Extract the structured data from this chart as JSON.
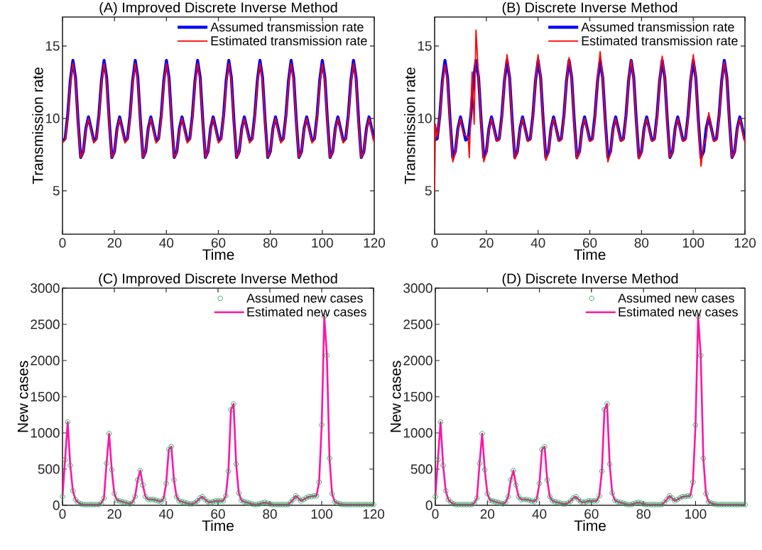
{
  "chart_data": [
    {
      "type": "line",
      "title": "(A) Improved Discrete Inverse Method",
      "xlabel": "Time",
      "ylabel": "Transmission rate",
      "xlim": [
        0,
        120
      ],
      "ylim": [
        2,
        17
      ],
      "xticks": [
        0,
        20,
        40,
        60,
        80,
        100,
        120
      ],
      "yticks": [
        5,
        10,
        15
      ],
      "legend": "top right",
      "x": [
        0,
        1,
        2,
        3,
        4,
        5,
        6,
        7,
        8,
        9,
        10,
        11,
        12,
        13,
        14,
        15,
        16,
        17,
        18,
        19,
        20,
        21,
        22,
        23,
        24,
        25,
        26,
        27,
        28,
        29,
        30,
        31,
        32,
        33,
        34,
        35,
        36,
        37,
        38,
        39,
        40,
        41,
        42,
        43,
        44,
        45,
        46,
        47,
        48,
        49,
        50,
        51,
        52,
        53,
        54,
        55,
        56,
        57,
        58,
        59,
        60,
        61,
        62,
        63,
        64,
        65,
        66,
        67,
        68,
        69,
        70,
        71,
        72,
        73,
        74,
        75,
        76,
        77,
        78,
        79,
        80,
        81,
        82,
        83,
        84,
        85,
        86,
        87,
        88,
        89,
        90,
        91,
        92,
        93,
        94,
        95,
        96,
        97,
        98,
        99,
        100,
        101,
        102,
        103,
        104,
        105,
        106,
        107,
        108,
        109,
        110,
        111,
        112,
        113,
        114,
        115,
        116,
        117,
        118,
        119,
        120
      ],
      "series": [
        {
          "name": "Assumed transmission rate",
          "color": "#0000ff",
          "type": "line",
          "values": [
            8.5,
            8.6,
            10.2,
            12.6,
            14.0,
            12.8,
            9.8,
            7.3,
            7.7,
            9.3,
            10.1,
            9.3,
            8.5,
            8.6,
            10.2,
            12.6,
            14.0,
            12.8,
            9.8,
            7.3,
            7.7,
            9.3,
            10.1,
            9.3,
            8.5,
            8.6,
            10.2,
            12.6,
            14.0,
            12.8,
            9.8,
            7.3,
            7.7,
            9.3,
            10.1,
            9.3,
            8.5,
            8.6,
            10.2,
            12.6,
            14.0,
            12.8,
            9.8,
            7.3,
            7.7,
            9.3,
            10.1,
            9.3,
            8.5,
            8.6,
            10.2,
            12.6,
            14.0,
            12.8,
            9.8,
            7.3,
            7.7,
            9.3,
            10.1,
            9.3,
            8.5,
            8.6,
            10.2,
            12.6,
            14.0,
            12.8,
            9.8,
            7.3,
            7.7,
            9.3,
            10.1,
            9.3,
            8.5,
            8.6,
            10.2,
            12.6,
            14.0,
            12.8,
            9.8,
            7.3,
            7.7,
            9.3,
            10.1,
            9.3,
            8.5,
            8.6,
            10.2,
            12.6,
            14.0,
            12.8,
            9.8,
            7.3,
            7.7,
            9.3,
            10.1,
            9.3,
            8.5,
            8.6,
            10.2,
            12.6,
            14.0,
            12.8,
            9.8,
            7.3,
            7.7,
            9.3,
            10.1,
            9.3,
            8.5,
            8.6,
            10.2,
            12.6,
            14.0,
            12.8,
            9.8,
            7.3,
            7.7,
            9.3,
            10.1,
            9.3,
            8.5
          ]
        },
        {
          "name": "Estimated transmission rate",
          "color": "#ff0000",
          "type": "line",
          "values": [
            8.3,
            8.5,
            10.0,
            12.4,
            13.8,
            12.6,
            9.6,
            7.3,
            7.7,
            9.2,
            10.0,
            9.2,
            8.3,
            8.5,
            10.0,
            12.4,
            13.8,
            12.6,
            9.6,
            7.3,
            7.7,
            9.2,
            10.0,
            9.2,
            8.3,
            8.5,
            10.0,
            12.4,
            13.8,
            12.6,
            9.6,
            7.3,
            7.7,
            9.2,
            10.0,
            9.2,
            8.3,
            8.5,
            10.0,
            12.4,
            13.8,
            12.6,
            9.6,
            7.3,
            7.7,
            9.2,
            10.0,
            9.2,
            8.3,
            8.5,
            10.0,
            12.4,
            13.8,
            12.6,
            9.6,
            7.3,
            7.7,
            9.2,
            10.0,
            9.2,
            8.3,
            8.5,
            10.0,
            12.4,
            13.8,
            12.6,
            9.6,
            7.3,
            7.7,
            9.2,
            10.0,
            9.2,
            8.3,
            8.5,
            10.0,
            12.4,
            13.8,
            12.6,
            9.6,
            7.3,
            7.7,
            9.2,
            10.0,
            9.2,
            8.3,
            8.5,
            10.0,
            12.4,
            13.8,
            12.6,
            9.6,
            7.3,
            7.7,
            9.2,
            10.0,
            9.2,
            8.3,
            8.5,
            10.0,
            12.4,
            13.8,
            12.6,
            9.6,
            7.3,
            7.7,
            9.2,
            10.0,
            9.2,
            8.3,
            8.5,
            10.0,
            12.4,
            13.8,
            12.6,
            9.6,
            7.3,
            7.7,
            9.2,
            10.0,
            9.2,
            8.3
          ]
        }
      ]
    },
    {
      "type": "line",
      "title": "(B) Discrete Inverse Method",
      "xlabel": "Time",
      "ylabel": "Transmission rate",
      "xlim": [
        0,
        120
      ],
      "ylim": [
        2,
        17
      ],
      "xticks": [
        0,
        20,
        40,
        60,
        80,
        100,
        120
      ],
      "yticks": [
        5,
        10,
        15
      ],
      "legend": "top right",
      "x": [
        0,
        1,
        2,
        3,
        4,
        5,
        6,
        7,
        8,
        9,
        10,
        11,
        12,
        13,
        14,
        15,
        16,
        17,
        18,
        19,
        20,
        21,
        22,
        23,
        24,
        25,
        26,
        27,
        28,
        29,
        30,
        31,
        32,
        33,
        34,
        35,
        36,
        37,
        38,
        39,
        40,
        41,
        42,
        43,
        44,
        45,
        46,
        47,
        48,
        49,
        50,
        51,
        52,
        53,
        54,
        55,
        56,
        57,
        58,
        59,
        60,
        61,
        62,
        63,
        64,
        65,
        66,
        67,
        68,
        69,
        70,
        71,
        72,
        73,
        74,
        75,
        76,
        77,
        78,
        79,
        80,
        81,
        82,
        83,
        84,
        85,
        86,
        87,
        88,
        89,
        90,
        91,
        92,
        93,
        94,
        95,
        96,
        97,
        98,
        99,
        100,
        101,
        102,
        103,
        104,
        105,
        106,
        107,
        108,
        109,
        110,
        111,
        112,
        113,
        114,
        115,
        116,
        117,
        118,
        119,
        120
      ],
      "series": [
        {
          "name": "Assumed transmission rate",
          "color": "#0000ff",
          "type": "line",
          "values": [
            8.5,
            8.6,
            10.2,
            12.6,
            14.0,
            12.8,
            9.8,
            7.3,
            7.7,
            9.3,
            10.1,
            9.3,
            8.5,
            8.6,
            10.2,
            12.6,
            14.0,
            12.8,
            9.8,
            7.3,
            7.7,
            9.3,
            10.1,
            9.3,
            8.5,
            8.6,
            10.2,
            12.6,
            14.0,
            12.8,
            9.8,
            7.3,
            7.7,
            9.3,
            10.1,
            9.3,
            8.5,
            8.6,
            10.2,
            12.6,
            14.0,
            12.8,
            9.8,
            7.3,
            7.7,
            9.3,
            10.1,
            9.3,
            8.5,
            8.6,
            10.2,
            12.6,
            14.0,
            12.8,
            9.8,
            7.3,
            7.7,
            9.3,
            10.1,
            9.3,
            8.5,
            8.6,
            10.2,
            12.6,
            14.0,
            12.8,
            9.8,
            7.3,
            7.7,
            9.3,
            10.1,
            9.3,
            8.5,
            8.6,
            10.2,
            12.6,
            14.0,
            12.8,
            9.8,
            7.3,
            7.7,
            9.3,
            10.1,
            9.3,
            8.5,
            8.6,
            10.2,
            12.6,
            14.0,
            12.8,
            9.8,
            7.3,
            7.7,
            9.3,
            10.1,
            9.3,
            8.5,
            8.6,
            10.2,
            12.6,
            14.0,
            12.8,
            9.8,
            7.3,
            7.7,
            9.3,
            10.1,
            9.3,
            8.5,
            8.6,
            10.2,
            12.6,
            14.0,
            12.8,
            9.8,
            7.3,
            7.7,
            9.3,
            10.1,
            9.3,
            8.5
          ]
        },
        {
          "name": "Estimated transmission rate",
          "color": "#ff0000",
          "type": "line",
          "x": [
            0,
            0.3,
            1,
            2,
            3,
            4,
            5,
            6,
            7,
            8,
            9,
            10,
            11,
            12,
            13,
            13.4,
            14.5,
            15.3,
            16,
            17,
            18,
            19,
            20,
            21,
            22,
            23,
            24,
            25,
            26,
            27,
            28,
            29,
            30,
            31,
            32,
            33,
            34,
            35,
            36,
            37,
            38,
            39,
            40,
            41,
            42,
            43,
            44,
            45,
            46,
            47,
            48,
            49,
            50,
            51,
            52,
            53,
            54,
            55,
            56,
            57,
            58,
            59,
            60,
            61,
            62,
            63,
            64,
            65,
            66,
            67,
            68,
            69,
            70,
            71,
            72,
            73,
            74,
            75,
            76,
            77,
            78,
            79,
            80,
            81,
            82,
            83,
            84,
            85,
            86,
            87,
            88,
            89,
            90,
            91,
            92,
            93,
            94,
            95,
            96,
            97,
            98,
            99,
            100,
            101,
            102,
            103,
            104,
            105,
            106,
            107,
            108,
            109,
            110,
            111,
            112,
            113,
            114,
            115,
            116,
            117,
            118,
            119,
            120
          ],
          "values": [
            5.0,
            9.6,
            8.7,
            10.1,
            12.4,
            13.7,
            12.6,
            9.5,
            7.0,
            7.6,
            9.2,
            10.0,
            9.0,
            8.8,
            8.7,
            7.3,
            13.2,
            9.6,
            16.1,
            12.8,
            9.6,
            7.0,
            7.6,
            9.2,
            10.0,
            9.2,
            8.4,
            8.5,
            10.0,
            12.6,
            14.4,
            12.8,
            9.6,
            7.2,
            7.6,
            9.2,
            10.0,
            9.2,
            8.4,
            8.5,
            10.0,
            12.6,
            14.4,
            12.8,
            9.6,
            7.1,
            7.6,
            9.2,
            10.0,
            9.2,
            8.4,
            8.5,
            10.0,
            12.5,
            14.2,
            12.7,
            9.6,
            7.2,
            7.6,
            9.2,
            10.0,
            9.2,
            8.4,
            8.5,
            10.0,
            12.7,
            14.6,
            12.8,
            9.6,
            7.0,
            7.6,
            9.2,
            10.0,
            9.2,
            8.4,
            8.5,
            10.0,
            12.5,
            14.0,
            12.7,
            9.6,
            7.2,
            7.6,
            9.2,
            10.0,
            9.2,
            8.4,
            8.5,
            10.0,
            12.6,
            14.3,
            12.8,
            9.6,
            7.3,
            7.7,
            9.2,
            10.0,
            9.2,
            8.4,
            8.5,
            10.0,
            12.6,
            14.4,
            12.8,
            9.6,
            6.7,
            8.2,
            8.6,
            10.4,
            9.3,
            8.4,
            8.5,
            10.0,
            12.5,
            13.9,
            12.7,
            9.6,
            7.3,
            7.7,
            9.2,
            10.0,
            9.2,
            8.3
          ]
        }
      ]
    },
    {
      "type": "line",
      "title": "(C) Improved Discrete Inverse Method",
      "xlabel": "Time",
      "ylabel": "New cases",
      "xlim": [
        0,
        120
      ],
      "ylim": [
        0,
        3000
      ],
      "xticks": [
        0,
        20,
        40,
        60,
        80,
        100,
        120
      ],
      "yticks": [
        0,
        500,
        1000,
        1500,
        2000,
        2500,
        3000
      ],
      "legend": "top right",
      "x": [
        0,
        1,
        2,
        3,
        4,
        5,
        6,
        7,
        8,
        9,
        10,
        11,
        12,
        13,
        14,
        15,
        16,
        17,
        18,
        19,
        20,
        21,
        22,
        23,
        24,
        25,
        26,
        27,
        28,
        29,
        30,
        31,
        32,
        33,
        34,
        35,
        36,
        37,
        38,
        39,
        40,
        41,
        42,
        43,
        44,
        45,
        46,
        47,
        48,
        49,
        50,
        51,
        52,
        53,
        54,
        55,
        56,
        57,
        58,
        59,
        60,
        61,
        62,
        63,
        64,
        65,
        66,
        67,
        68,
        69,
        70,
        71,
        72,
        73,
        74,
        75,
        76,
        77,
        78,
        79,
        80,
        81,
        82,
        83,
        84,
        85,
        86,
        87,
        88,
        89,
        90,
        91,
        92,
        93,
        94,
        95,
        96,
        97,
        98,
        99,
        100,
        101,
        102,
        103,
        104,
        105,
        106,
        107,
        108,
        109,
        110,
        111,
        112,
        113,
        114,
        115,
        116,
        117,
        118,
        119,
        120
      ],
      "series": [
        {
          "name": "Assumed new cases",
          "color": "#1fa84f",
          "type": "scatter",
          "marker": "circle",
          "values": [
            120,
            630,
            1150,
            550,
            200,
            80,
            40,
            20,
            10,
            10,
            10,
            10,
            10,
            10,
            10,
            30,
            100,
            580,
            990,
            490,
            160,
            70,
            60,
            50,
            40,
            30,
            20,
            40,
            120,
            350,
            480,
            280,
            120,
            80,
            80,
            80,
            70,
            60,
            50,
            90,
            300,
            770,
            810,
            350,
            120,
            60,
            50,
            40,
            30,
            20,
            20,
            30,
            60,
            100,
            120,
            80,
            50,
            40,
            50,
            60,
            60,
            60,
            60,
            130,
            470,
            1320,
            1400,
            570,
            170,
            70,
            50,
            40,
            30,
            20,
            10,
            10,
            20,
            30,
            40,
            30,
            20,
            10,
            10,
            10,
            10,
            10,
            10,
            10,
            40,
            80,
            130,
            100,
            60,
            80,
            100,
            120,
            120,
            130,
            130,
            320,
            1110,
            2610,
            2070,
            650,
            160,
            50,
            30,
            20,
            10,
            10,
            10,
            10,
            10,
            10,
            10,
            10,
            10,
            10,
            10,
            10,
            10
          ]
        },
        {
          "name": "Estimated new cases",
          "color": "#ff14a5",
          "type": "line",
          "values": [
            120,
            630,
            1150,
            550,
            200,
            80,
            40,
            20,
            10,
            10,
            10,
            10,
            10,
            10,
            10,
            30,
            100,
            580,
            990,
            490,
            160,
            70,
            60,
            50,
            40,
            30,
            20,
            40,
            120,
            350,
            480,
            280,
            120,
            80,
            80,
            80,
            70,
            60,
            50,
            90,
            300,
            770,
            810,
            350,
            120,
            60,
            50,
            40,
            30,
            20,
            20,
            30,
            60,
            100,
            120,
            80,
            50,
            40,
            50,
            60,
            60,
            60,
            60,
            130,
            470,
            1320,
            1400,
            570,
            170,
            70,
            50,
            40,
            30,
            20,
            10,
            10,
            20,
            30,
            40,
            30,
            20,
            10,
            10,
            10,
            10,
            10,
            10,
            10,
            40,
            80,
            130,
            100,
            60,
            80,
            100,
            120,
            120,
            130,
            130,
            320,
            1110,
            2610,
            2070,
            650,
            160,
            50,
            30,
            20,
            10,
            10,
            10,
            10,
            10,
            10,
            10,
            10,
            10,
            10,
            10,
            10,
            10
          ]
        }
      ]
    },
    {
      "type": "line",
      "title": "(D) Discrete Inverse Method",
      "xlabel": "Time",
      "ylabel": "New cases",
      "xlim": [
        0,
        119
      ],
      "ylim": [
        0,
        3000
      ],
      "xticks": [
        0,
        20,
        40,
        60,
        80,
        100
      ],
      "yticks": [
        0,
        500,
        1000,
        1500,
        2000,
        2500,
        3000
      ],
      "legend": "top right",
      "x": [
        0,
        1,
        2,
        3,
        4,
        5,
        6,
        7,
        8,
        9,
        10,
        11,
        12,
        13,
        14,
        15,
        16,
        17,
        18,
        19,
        20,
        21,
        22,
        23,
        24,
        25,
        26,
        27,
        28,
        29,
        30,
        31,
        32,
        33,
        34,
        35,
        36,
        37,
        38,
        39,
        40,
        41,
        42,
        43,
        44,
        45,
        46,
        47,
        48,
        49,
        50,
        51,
        52,
        53,
        54,
        55,
        56,
        57,
        58,
        59,
        60,
        61,
        62,
        63,
        64,
        65,
        66,
        67,
        68,
        69,
        70,
        71,
        72,
        73,
        74,
        75,
        76,
        77,
        78,
        79,
        80,
        81,
        82,
        83,
        84,
        85,
        86,
        87,
        88,
        89,
        90,
        91,
        92,
        93,
        94,
        95,
        96,
        97,
        98,
        99,
        100,
        101,
        102,
        103,
        104,
        105,
        106,
        107,
        108,
        109,
        110,
        111,
        112,
        113,
        114,
        115,
        116,
        117,
        118,
        119
      ],
      "series": [
        {
          "name": "Assumed new cases",
          "color": "#1fa84f",
          "type": "scatter",
          "marker": "circle",
          "values": [
            120,
            630,
            1150,
            550,
            200,
            80,
            40,
            20,
            10,
            10,
            10,
            10,
            10,
            10,
            10,
            30,
            100,
            580,
            990,
            490,
            160,
            70,
            60,
            50,
            40,
            30,
            20,
            40,
            120,
            350,
            480,
            280,
            120,
            80,
            80,
            80,
            70,
            60,
            50,
            90,
            300,
            770,
            810,
            350,
            120,
            60,
            50,
            40,
            30,
            20,
            20,
            30,
            60,
            100,
            120,
            80,
            50,
            40,
            50,
            60,
            60,
            60,
            60,
            130,
            470,
            1320,
            1400,
            570,
            170,
            70,
            50,
            40,
            30,
            20,
            10,
            10,
            20,
            30,
            40,
            30,
            20,
            10,
            10,
            10,
            10,
            10,
            10,
            10,
            40,
            80,
            130,
            100,
            60,
            80,
            100,
            120,
            120,
            130,
            130,
            320,
            1110,
            2610,
            2070,
            650,
            160,
            50,
            30,
            20,
            10,
            10,
            10,
            10,
            10,
            10,
            10,
            10,
            10,
            10,
            10,
            10
          ]
        },
        {
          "name": "Estimated new cases",
          "color": "#ff14a5",
          "type": "line",
          "values": [
            120,
            630,
            1150,
            550,
            200,
            80,
            40,
            20,
            10,
            10,
            10,
            10,
            10,
            10,
            10,
            30,
            100,
            580,
            990,
            490,
            160,
            70,
            60,
            50,
            40,
            30,
            20,
            40,
            120,
            350,
            480,
            280,
            120,
            80,
            80,
            80,
            70,
            60,
            50,
            90,
            300,
            770,
            810,
            350,
            120,
            60,
            50,
            40,
            30,
            20,
            20,
            30,
            60,
            100,
            120,
            80,
            50,
            40,
            50,
            60,
            60,
            60,
            60,
            130,
            470,
            1320,
            1400,
            570,
            170,
            70,
            50,
            40,
            30,
            20,
            10,
            10,
            20,
            30,
            40,
            30,
            20,
            10,
            10,
            10,
            10,
            10,
            10,
            10,
            40,
            80,
            130,
            100,
            60,
            80,
            100,
            120,
            120,
            130,
            130,
            320,
            1110,
            2610,
            2070,
            650,
            160,
            50,
            30,
            20,
            10,
            10,
            10,
            10,
            10,
            10,
            10,
            10,
            10,
            10,
            10,
            10
          ]
        }
      ]
    }
  ]
}
